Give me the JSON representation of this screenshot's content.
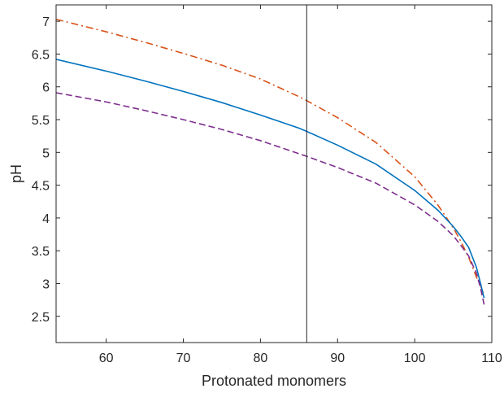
{
  "chart_data": {
    "type": "line",
    "title": "",
    "xlabel": "Protonated monomers",
    "ylabel": "pH",
    "xlim": [
      53.5,
      110
    ],
    "ylim": [
      2.1,
      7.25
    ],
    "xticks": [
      60,
      70,
      80,
      90,
      100,
      110
    ],
    "yticks": [
      2.5,
      3,
      3.5,
      4,
      4.5,
      5,
      5.5,
      6,
      6.5,
      7
    ],
    "xtick_labels": [
      "60",
      "70",
      "80",
      "90",
      "100",
      "110"
    ],
    "ytick_labels": [
      "2.5",
      "3",
      "3.5",
      "4",
      "4.5",
      "5",
      "5.5",
      "6",
      "6.5",
      "7"
    ],
    "grid": false,
    "vertical_line_x": 86,
    "series": [
      {
        "color": "#D95319",
        "dash": "dash-dot",
        "x": [
          53.5,
          60,
          65,
          70,
          75,
          80,
          85,
          86,
          90,
          95,
          100,
          103,
          105,
          106,
          107,
          108,
          108.5,
          109
        ],
        "y": [
          7.03,
          6.84,
          6.68,
          6.51,
          6.33,
          6.12,
          5.85,
          5.79,
          5.53,
          5.15,
          4.63,
          4.2,
          3.85,
          3.64,
          3.4,
          3.1,
          2.98,
          2.82
        ]
      },
      {
        "color": "#0072BD",
        "dash": "solid",
        "x": [
          53.5,
          60,
          65,
          70,
          75,
          80,
          85,
          86,
          90,
          95,
          100,
          103,
          105,
          106,
          107,
          108,
          108.5,
          109
        ],
        "y": [
          6.42,
          6.24,
          6.09,
          5.93,
          5.76,
          5.57,
          5.37,
          5.32,
          5.11,
          4.82,
          4.42,
          4.12,
          3.87,
          3.72,
          3.55,
          3.25,
          3.02,
          2.78
        ]
      },
      {
        "color": "#7E2F8E",
        "dash": "dashed",
        "x": [
          53.5,
          60,
          65,
          70,
          75,
          80,
          85,
          86,
          90,
          95,
          100,
          103,
          105,
          106,
          107,
          108,
          108.5,
          109
        ],
        "y": [
          5.91,
          5.77,
          5.64,
          5.5,
          5.35,
          5.18,
          4.98,
          4.94,
          4.77,
          4.53,
          4.2,
          3.95,
          3.73,
          3.58,
          3.42,
          3.16,
          2.95,
          2.68
        ]
      }
    ]
  }
}
